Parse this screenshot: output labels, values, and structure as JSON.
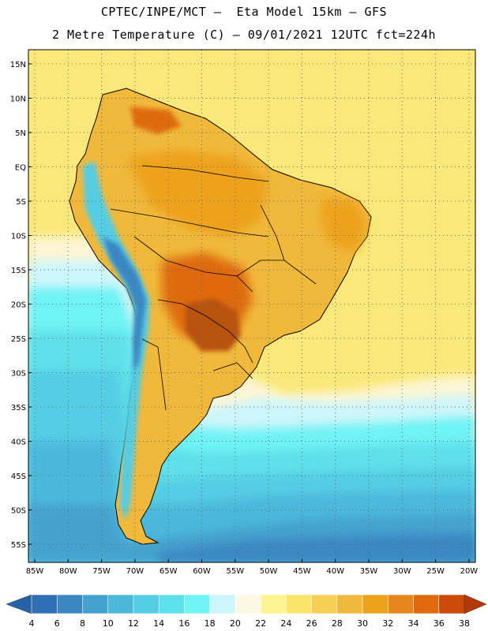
{
  "header": {
    "line1": "CPTEC/INPE/MCT –  Eta Model 15km – GFS",
    "line2": "2 Metre Temperature (C) – 09/01/2021 12UTC fct=224h"
  },
  "lat_ticks": [
    "15N",
    "10N",
    "5N",
    "EQ",
    "5S",
    "10S",
    "15S",
    "20S",
    "25S",
    "30S",
    "35S",
    "40S",
    "45S",
    "50S",
    "55S"
  ],
  "lon_ticks": [
    "85W",
    "80W",
    "75W",
    "70W",
    "65W",
    "60W",
    "55W",
    "50W",
    "45W",
    "40W",
    "35W",
    "30W",
    "25W",
    "20W"
  ],
  "colorbar": {
    "labels": [
      "4",
      "6",
      "8",
      "10",
      "12",
      "14",
      "16",
      "18",
      "20",
      "22",
      "24",
      "26",
      "28",
      "30",
      "32",
      "34",
      "36",
      "38"
    ],
    "colors": [
      "#2f6fb3",
      "#3a87c2",
      "#45a2cf",
      "#4bb8db",
      "#55cde4",
      "#5ee0ea",
      "#6ff3f5",
      "#cdf6fb",
      "#fdf8e3",
      "#fdf592",
      "#fbe46a",
      "#f7cf55",
      "#f0b93c",
      "#eea21b",
      "#e7861c",
      "#df6a10",
      "#cc4a07"
    ],
    "low_color": "#2662a8",
    "high_color": "#b23a06"
  },
  "palette": {
    "ocean_tropical": "#fbe87a",
    "ocean_cool": "#fdf6d4",
    "ocean_18": "#cdf6fb",
    "ocean_16": "#6ff3f5",
    "ocean_14": "#5ee0ea",
    "ocean_12": "#55cde4",
    "ocean_10": "#4bb8db",
    "ocean_8": "#45a2cf",
    "ocean_6": "#3a87c2",
    "land_warm": "#f0b93c",
    "land_hot": "#eea21b",
    "land_hotter": "#df6a10",
    "land_hottest": "#b8520c",
    "andes": "#55cde4",
    "andes_high": "#3a87c2",
    "coast": "#000000",
    "grid": "#666666"
  }
}
